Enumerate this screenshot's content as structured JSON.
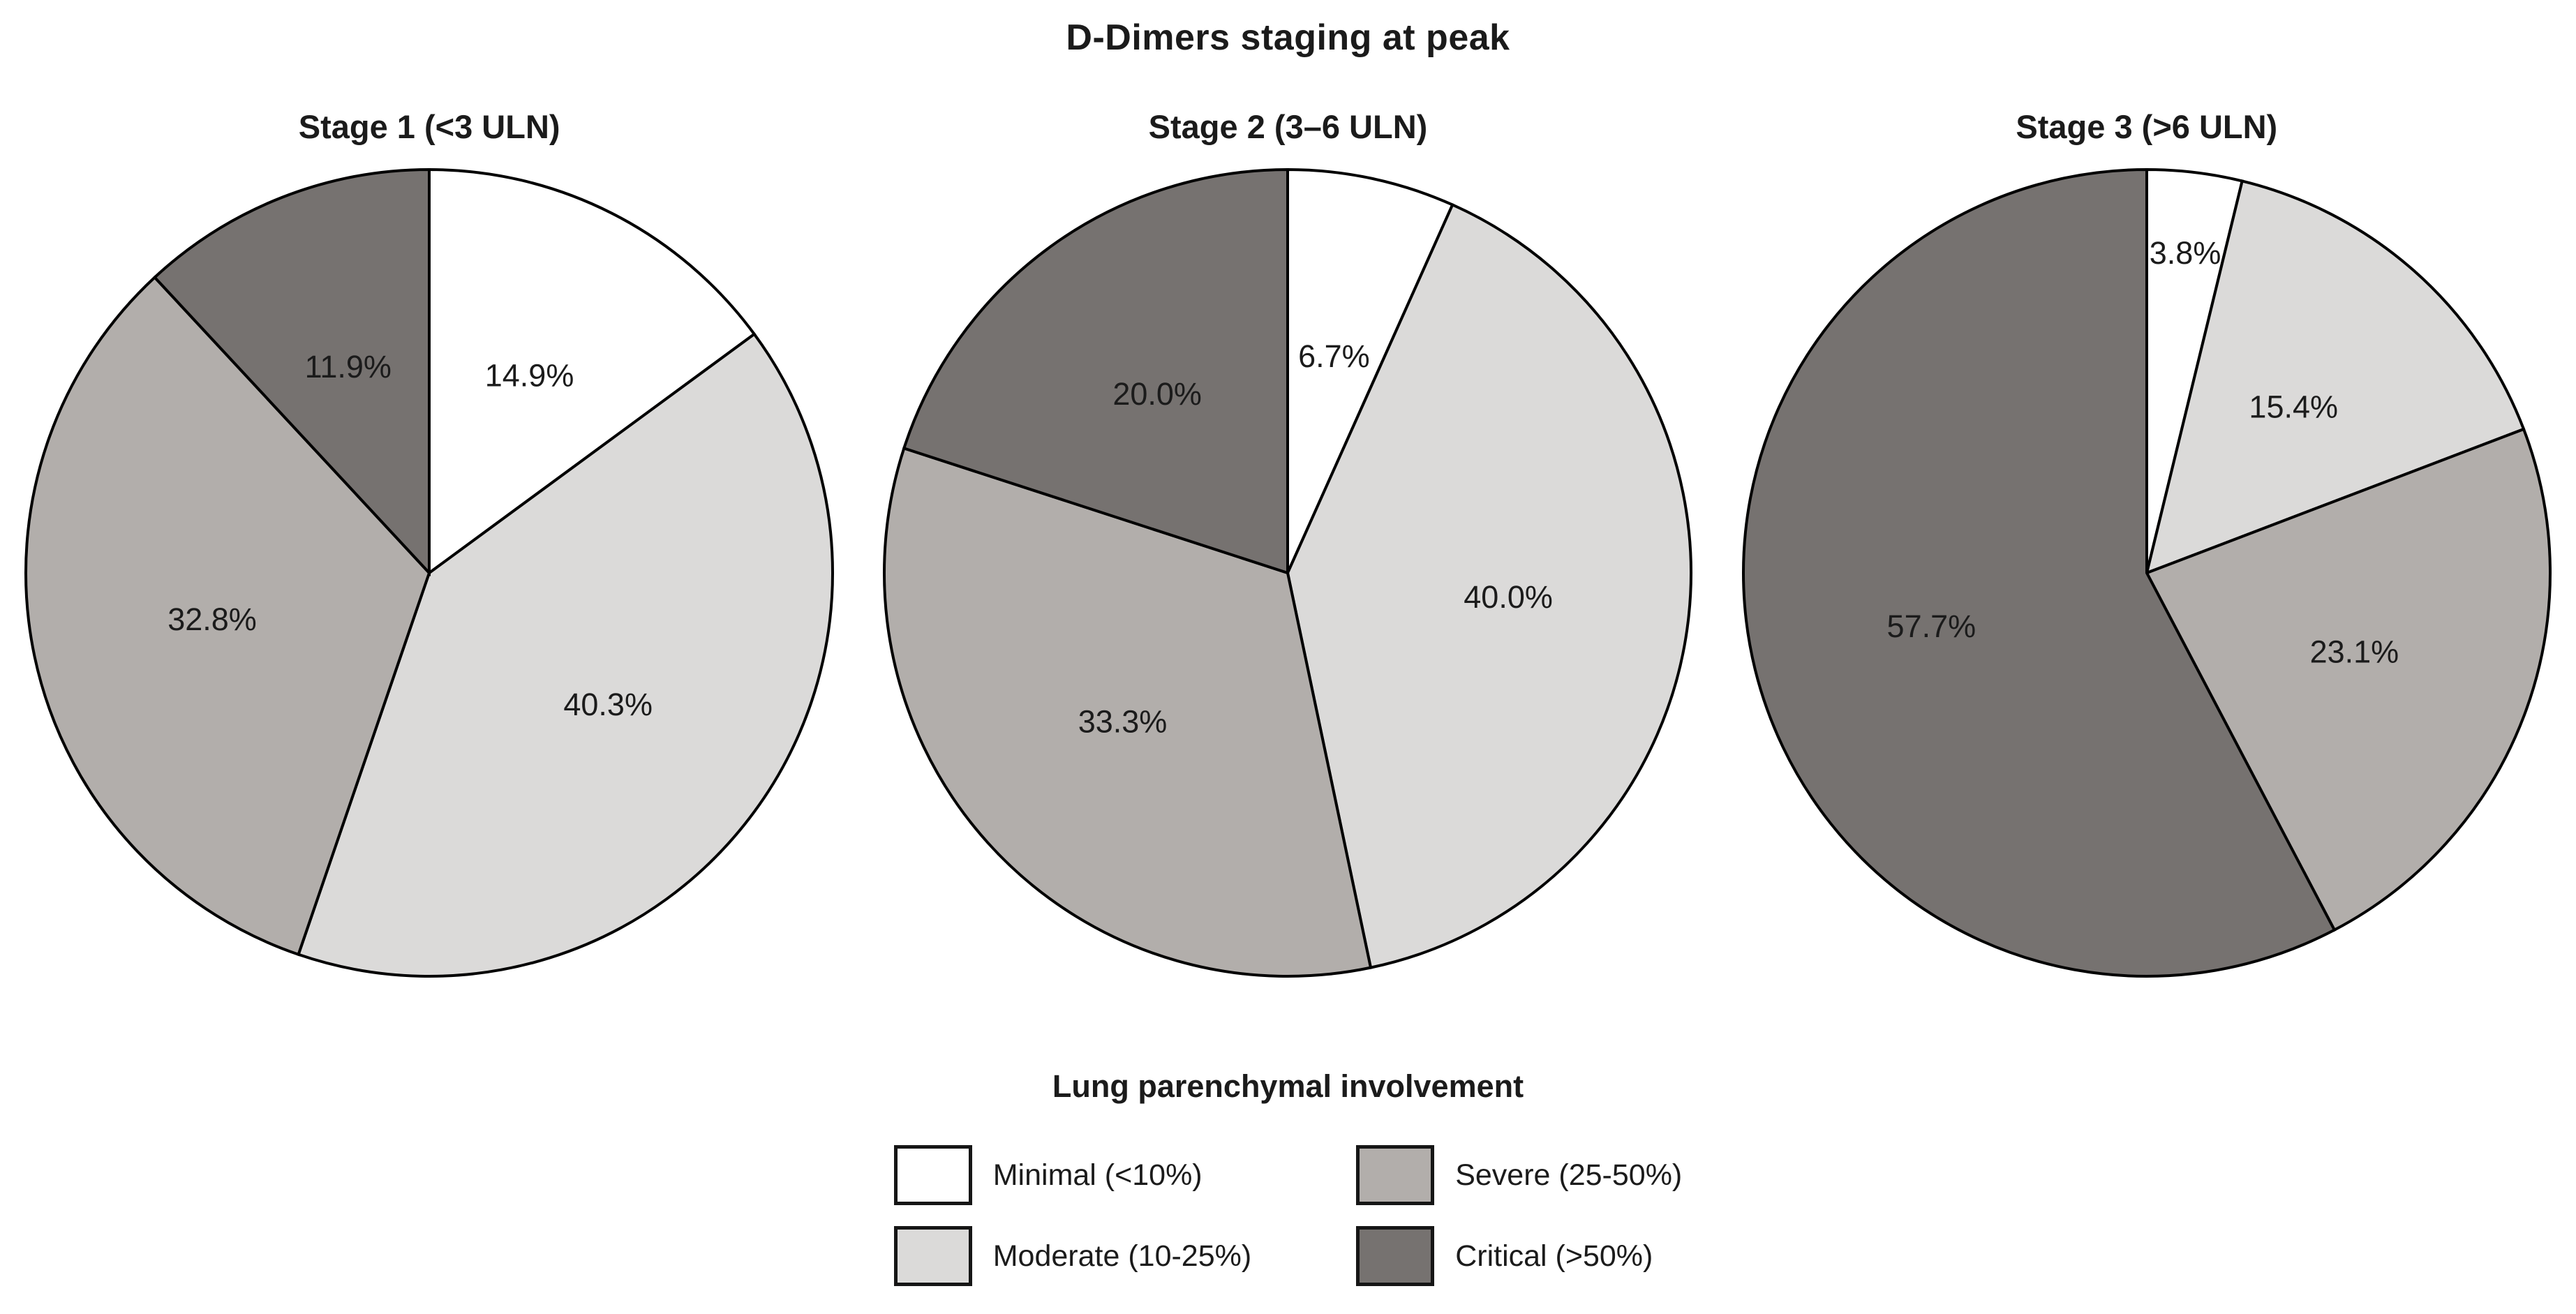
{
  "page": {
    "title": "D-Dimers staging at peak"
  },
  "chart_data": [
    {
      "type": "pie",
      "title": "Stage 1 (<3 ULN)",
      "start_angle": "top",
      "direction": "clockwise",
      "slices": [
        {
          "label": "Minimal (<10%)",
          "value": 14.9,
          "display": "14.9%",
          "color": "#ffffff"
        },
        {
          "label": "Moderate (10-25%)",
          "value": 40.3,
          "display": "40.3%",
          "color": "#dbdad9"
        },
        {
          "label": "Severe (25-50%)",
          "value": 32.8,
          "display": "32.8%",
          "color": "#b2aeab"
        },
        {
          "label": "Critical (>50%)",
          "value": 11.9,
          "display": "11.9%",
          "color": "#767270"
        }
      ]
    },
    {
      "type": "pie",
      "title": "Stage 2 (3–6 ULN)",
      "start_angle": "top",
      "direction": "clockwise",
      "slices": [
        {
          "label": "Minimal (<10%)",
          "value": 6.7,
          "display": "6.7%",
          "color": "#ffffff"
        },
        {
          "label": "Moderate (10-25%)",
          "value": 40.0,
          "display": "40.0%",
          "color": "#dbdad9"
        },
        {
          "label": "Severe (25-50%)",
          "value": 33.3,
          "display": "33.3%",
          "color": "#b2aeab"
        },
        {
          "label": "Critical (>50%)",
          "value": 20.0,
          "display": "20.0%",
          "color": "#767270"
        }
      ]
    },
    {
      "type": "pie",
      "title": "Stage 3 (>6 ULN)",
      "start_angle": "top",
      "direction": "clockwise",
      "slices": [
        {
          "label": "Minimal (<10%)",
          "value": 3.8,
          "display": "3.8%",
          "color": "#ffffff"
        },
        {
          "label": "Moderate (10-25%)",
          "value": 15.4,
          "display": "15.4%",
          "color": "#dbdad9"
        },
        {
          "label": "Severe (25-50%)",
          "value": 23.1,
          "display": "23.1%",
          "color": "#b2aeab"
        },
        {
          "label": "Critical (>50%)",
          "value": 57.7,
          "display": "57.7%",
          "color": "#767270"
        }
      ]
    }
  ],
  "legend": {
    "title": "Lung parenchymal involvement",
    "items": [
      {
        "label": "Minimal (<10%)",
        "color": "#ffffff"
      },
      {
        "label": "Moderate (10-25%)",
        "color": "#dbdad9"
      },
      {
        "label": "Severe (25-50%)",
        "color": "#b2aeab"
      },
      {
        "label": "Critical (>50%)",
        "color": "#767270"
      }
    ]
  },
  "colors": {
    "slice_stroke": "#000000",
    "label_text": "#1b1b1b",
    "background": "#ffffff"
  }
}
